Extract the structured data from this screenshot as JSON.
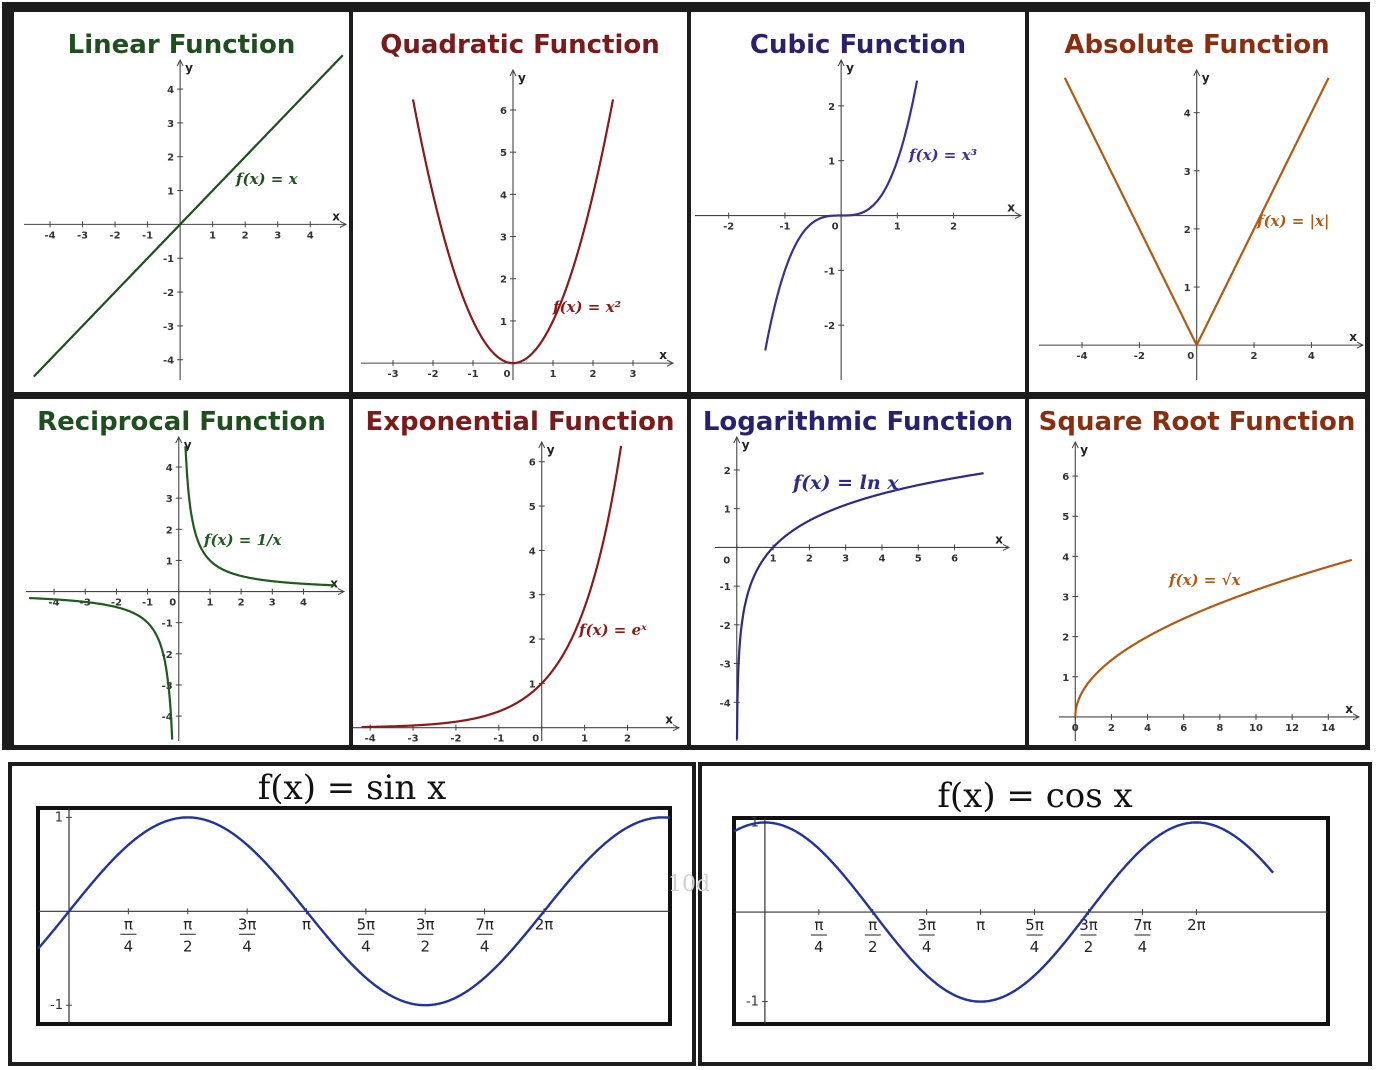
{
  "chart_data": [
    {
      "id": "linear",
      "type": "line",
      "title": "Linear Function",
      "color": "#1f4f1f",
      "fn": "x",
      "label": "f(x) = x",
      "xlabel": "x",
      "ylabel": "y",
      "xlim": [
        -4.8,
        5.1
      ],
      "ylim": [
        -4.6,
        4.8
      ],
      "xticks": [
        -4,
        -3,
        -2,
        -1,
        1,
        2,
        3,
        4
      ],
      "yticks": [
        -4,
        -3,
        -2,
        -1,
        1,
        2,
        3,
        4
      ],
      "x": [
        -4.5,
        5.0
      ],
      "y": [
        -4.5,
        5.0
      ]
    },
    {
      "id": "quadratic",
      "type": "line",
      "title": "Quadratic Function",
      "color": "#8b1a1a",
      "fn": "x^2",
      "label": "f(x) = x²",
      "xlabel": "x",
      "ylabel": "y",
      "xlim": [
        -3.8,
        4.0
      ],
      "ylim": [
        -0.4,
        6.9
      ],
      "xticks": [
        -3,
        -2,
        -1,
        0,
        1,
        2,
        3
      ],
      "yticks": [
        1,
        2,
        3,
        4,
        5,
        6
      ],
      "x": [
        -2.5,
        -2,
        -1,
        0,
        1,
        2,
        2.5
      ],
      "y": [
        6.25,
        4,
        1,
        0,
        1,
        4,
        6.25
      ]
    },
    {
      "id": "cubic",
      "type": "line",
      "title": "Cubic Function",
      "color": "#3a2e9a",
      "fn": "x^3",
      "label": "f(x) = x³",
      "xlabel": "x",
      "ylabel": "y",
      "xlim": [
        -2.6,
        3.2
      ],
      "ylim": [
        -3.0,
        2.8
      ],
      "xticks": [
        -2,
        -1,
        0,
        1,
        2
      ],
      "yticks": [
        -2,
        -1,
        1,
        2
      ],
      "x": [
        -1.35,
        -1,
        0,
        1,
        1.35
      ],
      "y": [
        -2.46,
        -1,
        0,
        1,
        2.46
      ]
    },
    {
      "id": "absolute",
      "type": "line",
      "title": "Absolute Function",
      "color": "#b35a12",
      "fn": "abs",
      "label": "f(x) = |x|",
      "xlabel": "x",
      "ylabel": "y",
      "xlim": [
        -5.5,
        5.8
      ],
      "ylim": [
        -0.6,
        4.7
      ],
      "xticks": [
        -4,
        -2,
        0,
        2,
        4
      ],
      "yticks": [
        1,
        2,
        3,
        4
      ],
      "x": [
        -4.6,
        0,
        4.6
      ],
      "y": [
        4.6,
        0,
        4.6
      ]
    },
    {
      "id": "reciprocal",
      "type": "line",
      "title": "Reciprocal Function",
      "color": "#1f5a1f",
      "fn": "1/x",
      "label": "f(x) = 1/x",
      "xlabel": "x",
      "ylabel": "y",
      "xlim": [
        -4.9,
        5.3
      ],
      "ylim": [
        -4.8,
        4.9
      ],
      "xticks": [
        -4,
        -3,
        -2,
        -1,
        0,
        1,
        2,
        3,
        4
      ],
      "yticks": [
        -4,
        -3,
        -2,
        -1,
        1,
        2,
        3,
        4
      ],
      "x": [
        -4.8,
        -1,
        -0.21,
        0.21,
        1,
        5.0
      ],
      "y": [
        -0.21,
        -1,
        -4.8,
        4.8,
        1,
        0.2
      ]
    },
    {
      "id": "exponential",
      "type": "line",
      "title": "Exponential Function",
      "color": "#8b1a1a",
      "fn": "exp",
      "label": "f(x) = eˣ",
      "xlabel": "x",
      "ylabel": "y",
      "xlim": [
        -4.4,
        3.2
      ],
      "ylim": [
        -0.3,
        6.4
      ],
      "xticks": [
        -4,
        -3,
        -2,
        -1,
        0,
        1,
        2
      ],
      "yticks": [
        1,
        2,
        3,
        4,
        5,
        6
      ],
      "x": [
        -4.2,
        -2,
        0,
        1,
        1.85
      ],
      "y": [
        0.015,
        0.135,
        1,
        2.72,
        6.36
      ]
    },
    {
      "id": "logarithmic",
      "type": "line",
      "title": "Logarithmic Function",
      "color": "#2e2a8a",
      "fn": "ln",
      "label": "f(x) = ln x",
      "xlabel": "x",
      "ylabel": "y",
      "xlim": [
        -0.6,
        7.5
      ],
      "ylim": [
        -5.0,
        2.8
      ],
      "xticks": [
        0,
        1,
        2,
        3,
        4,
        5,
        6
      ],
      "yticks": [
        -4,
        -3,
        -2,
        -1,
        1,
        2
      ],
      "x": [
        0.007,
        0.1,
        1,
        2.718,
        6.8
      ],
      "y": [
        -4.96,
        -2.3,
        0,
        1,
        1.92
      ]
    },
    {
      "id": "sqrt",
      "type": "line",
      "title": "Square Root Function",
      "color": "#b35a12",
      "fn": "sqrt",
      "label": "f(x) = √x",
      "xlabel": "x",
      "ylabel": "y",
      "xlim": [
        -0.9,
        15.7
      ],
      "ylim": [
        -0.6,
        6.8
      ],
      "xticks": [
        0,
        2,
        4,
        6,
        8,
        10,
        12,
        14
      ],
      "yticks": [
        1,
        2,
        3,
        4,
        5,
        6
      ],
      "x": [
        0,
        1,
        4,
        9,
        15.3
      ],
      "y": [
        0,
        1,
        2,
        3,
        3.91
      ]
    },
    {
      "id": "sine",
      "type": "line",
      "title": "f(x) = sin x",
      "color": "#2233a0",
      "fn": "sin",
      "xlim": [
        -0.41,
        7.95
      ],
      "ylim": [
        -1.2,
        1.1
      ],
      "xticks": [
        0.7854,
        1.5708,
        2.3562,
        3.1416,
        3.927,
        4.7124,
        5.4978,
        6.2832
      ],
      "xtick_labels": [
        "π/4",
        "π/2",
        "3π/4",
        "π",
        "5π/4",
        "3π/2",
        "7π/4",
        "2π"
      ],
      "yticks": [
        1,
        -1
      ],
      "x": [
        -0.41,
        0,
        1.5708,
        3.1416,
        4.7124,
        6.2832,
        7.95
      ],
      "y": [
        -0.4,
        0,
        1,
        0,
        -1,
        0,
        0.99
      ]
    },
    {
      "id": "cosine",
      "type": "line",
      "title": "f(x) = cos x",
      "color": "#2233a0",
      "fn": "cos",
      "xlim": [
        -0.45,
        8.2
      ],
      "ylim": [
        -1.25,
        1.05
      ],
      "xticks": [
        0.7854,
        1.5708,
        2.3562,
        3.1416,
        3.927,
        4.7124,
        5.4978,
        6.2832
      ],
      "xtick_labels": [
        "π/4",
        "π/2",
        "3π/4",
        "π",
        "5π/4",
        "3π/2",
        "7π/4",
        "2π"
      ],
      "yticks": [
        1,
        -1
      ],
      "x": [
        -0.45,
        0,
        1.5708,
        3.1416,
        4.7124,
        6.2832,
        7.4
      ],
      "y": [
        0.9,
        1,
        0,
        -1,
        0,
        1,
        0.44
      ]
    }
  ],
  "watermark": "10d"
}
